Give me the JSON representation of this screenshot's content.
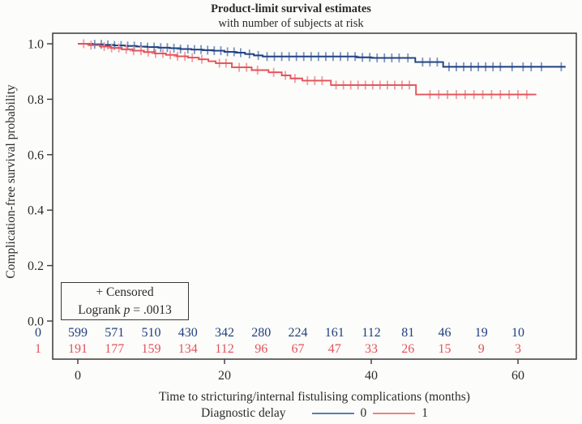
{
  "chart": {
    "title": "Product-limit survival estimates",
    "subtitle": "with number of subjects at risk",
    "ylabel": "Complication-free survival probability",
    "xlabel": "Time to stricturing/internal fistulising complications (months)",
    "legend_title": "Diagnostic delay",
    "inset": {
      "line1": "+ Censored",
      "line2_prefix": "Logrank ",
      "line2_italic": "p",
      "line2_suffix": " = .0013"
    }
  },
  "chart_data": {
    "type": "line",
    "subtype": "kaplan-meier-step",
    "title": "Product-limit survival estimates",
    "subtitle": "with number of subjects at risk",
    "xlabel": "Time to stricturing/internal fistulising complications (months)",
    "ylabel": "Complication-free survival probability",
    "xlim": [
      -3.4,
      68
    ],
    "ylim": [
      0.0,
      1.04
    ],
    "x_ticks": [
      0,
      20,
      40,
      60
    ],
    "y_ticks": [
      0.0,
      0.2,
      0.4,
      0.6,
      0.8,
      1.0
    ],
    "grid": false,
    "legend_position": "bottom",
    "logrank_p": ".0013",
    "series": [
      {
        "name": "0",
        "color": "#1f3f7e",
        "censor_color": "#7b93c2",
        "legend_color": "#5b7db1",
        "steps": [
          [
            0,
            1.0
          ],
          [
            2,
            0.998
          ],
          [
            3.5,
            0.996
          ],
          [
            5,
            0.994
          ],
          [
            6.5,
            0.992
          ],
          [
            8,
            0.99
          ],
          [
            9.5,
            0.988
          ],
          [
            11,
            0.986
          ],
          [
            12.5,
            0.984
          ],
          [
            14,
            0.981
          ],
          [
            15.5,
            0.979
          ],
          [
            17,
            0.977
          ],
          [
            18.5,
            0.975
          ],
          [
            20,
            0.971
          ],
          [
            21.5,
            0.968
          ],
          [
            22.8,
            0.963
          ],
          [
            24,
            0.958
          ],
          [
            25.2,
            0.954
          ],
          [
            38,
            0.951
          ],
          [
            40,
            0.949
          ],
          [
            46,
            0.934
          ],
          [
            49.8,
            0.917
          ]
        ],
        "end_month": 66.5,
        "censors": [
          2.3,
          3.2,
          4.1,
          5.0,
          5.9,
          6.8,
          7.7,
          8.6,
          9.5,
          10.4,
          11.3,
          12.2,
          13.1,
          14.0,
          15.0,
          15.9,
          16.8,
          17.7,
          18.6,
          19.5,
          20.4,
          21.3,
          22.2,
          23.4,
          24.6,
          25.8,
          26.8,
          27.8,
          28.8,
          29.8,
          30.8,
          31.8,
          32.8,
          33.8,
          34.8,
          35.8,
          36.8,
          37.8,
          38.8,
          39.8,
          40.8,
          41.8,
          42.8,
          43.8,
          45.0,
          47.0,
          48.0,
          49.0,
          50.6,
          51.6,
          52.6,
          53.6,
          54.6,
          55.6,
          56.6,
          57.6,
          59.2,
          60.7,
          61.8,
          63.2,
          65.9
        ]
      },
      {
        "name": "1",
        "color": "#e2535b",
        "censor_color": "#f29a9f",
        "legend_color": "#ee8188",
        "steps": [
          [
            0,
            1.0
          ],
          [
            1.5,
            0.995
          ],
          [
            3,
            0.99
          ],
          [
            4.5,
            0.985
          ],
          [
            6,
            0.98
          ],
          [
            7.5,
            0.975
          ],
          [
            9,
            0.97
          ],
          [
            10.5,
            0.965
          ],
          [
            12,
            0.96
          ],
          [
            13.5,
            0.955
          ],
          [
            15,
            0.95
          ],
          [
            16.5,
            0.944
          ],
          [
            17.8,
            0.937
          ],
          [
            18.8,
            0.93
          ],
          [
            21,
            0.915
          ],
          [
            23.7,
            0.905
          ],
          [
            26,
            0.897
          ],
          [
            27.8,
            0.886
          ],
          [
            29,
            0.875
          ],
          [
            30.6,
            0.867
          ],
          [
            34.5,
            0.851
          ],
          [
            46.1,
            0.817
          ]
        ],
        "end_month": 62.5,
        "censors": [
          0.8,
          1.8,
          3.6,
          4.6,
          5.6,
          6.6,
          7.6,
          8.6,
          9.6,
          10.6,
          11.6,
          12.6,
          13.6,
          14.6,
          15.6,
          16.9,
          19.3,
          20.2,
          22.0,
          23.0,
          24.5,
          26.7,
          28.3,
          29.6,
          31.3,
          32.3,
          33.3,
          35.2,
          36.2,
          37.2,
          38.2,
          39.2,
          40.2,
          41.2,
          42.2,
          43.2,
          44.2,
          45.2,
          48.0,
          49.2,
          50.4,
          51.6,
          52.8,
          54.0,
          55.2,
          56.4,
          57.6,
          58.8,
          60.0,
          61.2
        ]
      }
    ],
    "at_risk": {
      "months": [
        0,
        5,
        10,
        15,
        20,
        25,
        30,
        35,
        40,
        45,
        50,
        55,
        60
      ],
      "groups": [
        {
          "label": "0",
          "color": "#1f3f7e",
          "counts": [
            599,
            571,
            510,
            430,
            342,
            280,
            224,
            161,
            112,
            81,
            46,
            19,
            10
          ]
        },
        {
          "label": "1",
          "color": "#e2535b",
          "counts": [
            191,
            177,
            159,
            134,
            112,
            96,
            67,
            47,
            33,
            26,
            15,
            9,
            3
          ]
        }
      ]
    }
  }
}
